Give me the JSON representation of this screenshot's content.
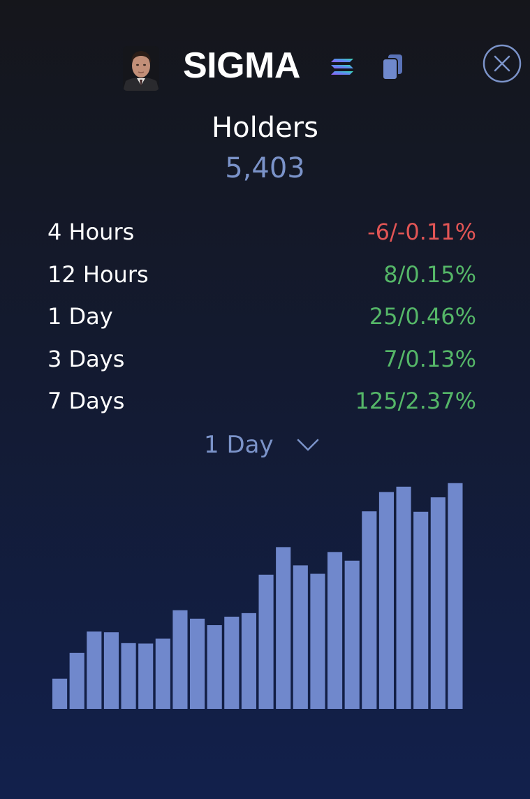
{
  "token": {
    "name": "SIGMA",
    "avatar_icon": "person-portrait-icon",
    "chain_icon": "solana-icon",
    "copy_icon": "copy-icon",
    "close_icon": "close-circle-icon"
  },
  "holders": {
    "label": "Holders",
    "value": "5,403"
  },
  "stats": [
    {
      "label": "4 Hours",
      "value": "-6/-0.11%",
      "trend": "negative"
    },
    {
      "label": "12 Hours",
      "value": "8/0.15%",
      "trend": "positive"
    },
    {
      "label": "1 Day",
      "value": "25/0.46%",
      "trend": "positive"
    },
    {
      "label": "3 Days",
      "value": "7/0.13%",
      "trend": "positive"
    },
    {
      "label": "7 Days",
      "value": "125/2.37%",
      "trend": "positive"
    }
  ],
  "period_selector": {
    "selected": "1 Day",
    "icon": "chevron-down-icon"
  },
  "colors": {
    "accent": "#7b93c9",
    "bar": "#7088cc",
    "negative": "#e25555",
    "positive": "#55b768",
    "close_ring": "#7b93c9"
  },
  "chart_data": {
    "type": "bar",
    "values": [
      13.6,
      25.2,
      34.8,
      34.5,
      29.6,
      29.4,
      31.6,
      44.4,
      40.6,
      37.7,
      41.5,
      43.1,
      60.4,
      72.8,
      64.6,
      60.8,
      70.6,
      66.7,
      88.9,
      97.6,
      100,
      88.7,
      95.2,
      101.6
    ],
    "ylim": [
      0,
      110
    ],
    "xlabel": "",
    "ylabel": "",
    "grid": false,
    "axes_visible": false
  }
}
